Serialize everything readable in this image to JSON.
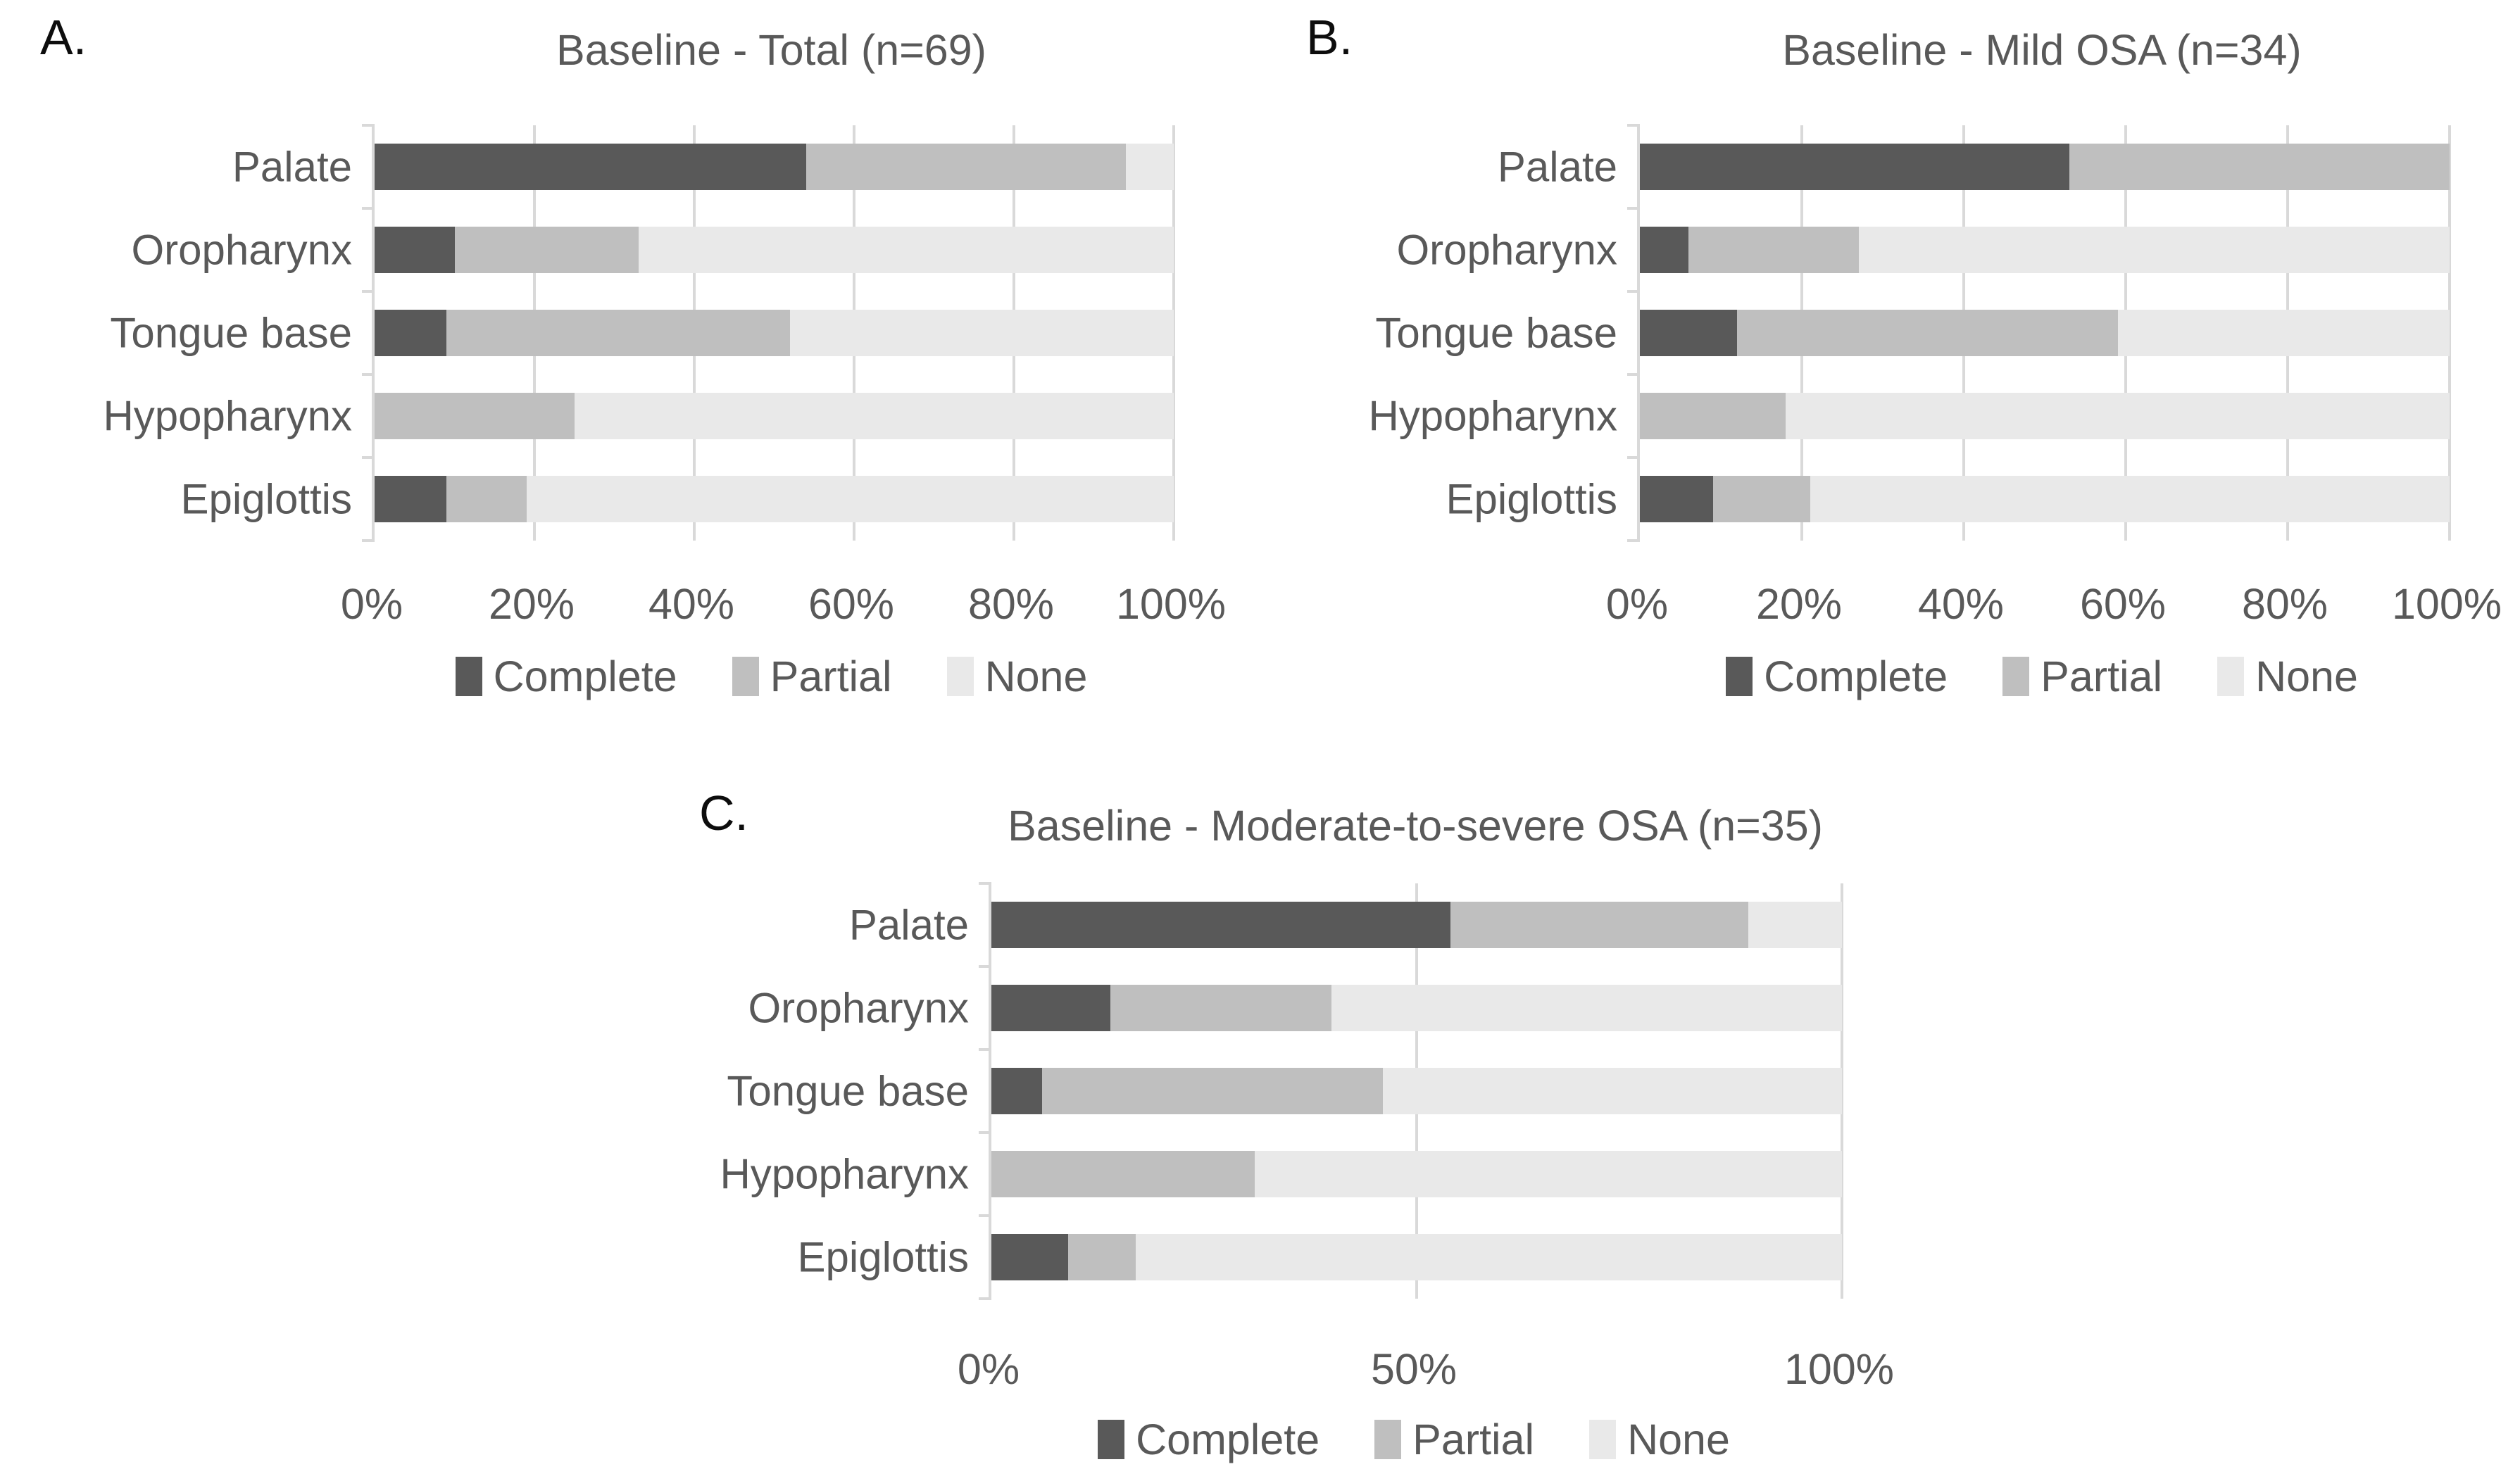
{
  "page": {
    "background": "#ffffff"
  },
  "colors": {
    "complete": "#595959",
    "partial": "#bfbfbf",
    "none": "#e9e9e9",
    "gridline": "#d9d9d9",
    "axis_line": "#d9d9d9",
    "text": "#595959",
    "panel_letter": "#0d0d0d"
  },
  "chart_data": [
    {
      "id": "A",
      "panel_letter": "A.",
      "type": "bar",
      "orientation": "horizontal",
      "stacked": true,
      "title": "Baseline - Total (n=69)",
      "categories": [
        "Palate",
        "Oropharynx",
        "Tongue base",
        "Hypopharynx",
        "Epiglottis"
      ],
      "series": [
        {
          "name": "Complete",
          "color_key": "complete",
          "values": [
            54,
            10,
            9,
            0,
            9
          ]
        },
        {
          "name": "Partial",
          "color_key": "partial",
          "values": [
            40,
            23,
            43,
            25,
            10
          ]
        },
        {
          "name": "None",
          "color_key": "none",
          "values": [
            6,
            67,
            48,
            75,
            81
          ]
        }
      ],
      "xlim": [
        0,
        100
      ],
      "x_tick_values": [
        0,
        20,
        40,
        60,
        80,
        100
      ],
      "x_tick_labels": [
        "0%",
        "20%",
        "40%",
        "60%",
        "80%",
        "100%"
      ],
      "grid": true,
      "legend": [
        "Complete",
        "Partial",
        "None"
      ],
      "legend_position": "bottom"
    },
    {
      "id": "B",
      "panel_letter": "B.",
      "type": "bar",
      "orientation": "horizontal",
      "stacked": true,
      "title": "Baseline - Mild OSA (n=34)",
      "categories": [
        "Palate",
        "Oropharynx",
        "Tongue base",
        "Hypopharynx",
        "Epiglottis"
      ],
      "series": [
        {
          "name": "Complete",
          "color_key": "complete",
          "values": [
            53,
            6,
            12,
            0,
            9
          ]
        },
        {
          "name": "Partial",
          "color_key": "partial",
          "values": [
            47,
            21,
            47,
            18,
            12
          ]
        },
        {
          "name": "None",
          "color_key": "none",
          "values": [
            0,
            73,
            41,
            82,
            79
          ]
        }
      ],
      "xlim": [
        0,
        100
      ],
      "x_tick_values": [
        0,
        20,
        40,
        60,
        80,
        100
      ],
      "x_tick_labels": [
        "0%",
        "20%",
        "40%",
        "60%",
        "80%",
        "100%"
      ],
      "grid": true,
      "legend": [
        "Complete",
        "Partial",
        "None"
      ],
      "legend_position": "bottom"
    },
    {
      "id": "C",
      "panel_letter": "C.",
      "type": "bar",
      "orientation": "horizontal",
      "stacked": true,
      "title": "Baseline - Moderate-to-severe OSA (n=35)",
      "categories": [
        "Palate",
        "Oropharynx",
        "Tongue base",
        "Hypopharynx",
        "Epiglottis"
      ],
      "series": [
        {
          "name": "Complete",
          "color_key": "complete",
          "values": [
            54,
            14,
            6,
            0,
            9
          ]
        },
        {
          "name": "Partial",
          "color_key": "partial",
          "values": [
            35,
            26,
            40,
            31,
            8
          ]
        },
        {
          "name": "None",
          "color_key": "none",
          "values": [
            11,
            60,
            54,
            69,
            83
          ]
        }
      ],
      "xlim": [
        0,
        100
      ],
      "x_tick_values": [
        0,
        50,
        100
      ],
      "x_tick_labels": [
        "0%",
        "50%",
        "100%"
      ],
      "grid": true,
      "legend": [
        "Complete",
        "Partial",
        "None"
      ],
      "legend_position": "bottom"
    }
  ]
}
